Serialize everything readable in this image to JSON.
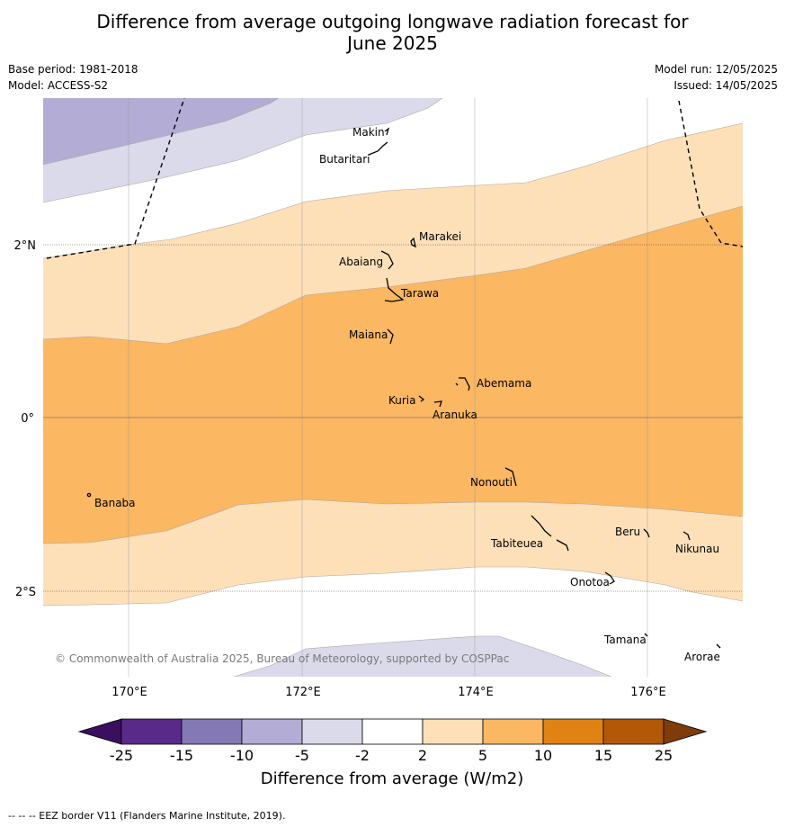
{
  "title_line1": "Difference from average outgoing longwave radiation forecast for",
  "title_line2": "June 2025",
  "base_period": "Base period: 1981-2018",
  "model": "Model: ACCESS-S2",
  "model_run": "Model run: 12/05/2025",
  "issued": "Issued: 14/05/2025",
  "copyright": "© Commonwealth of Australia 2025, Bureau of Meteorology, supported by COSPPac",
  "lat_labels": [
    "2°N",
    "0°",
    "2°S"
  ],
  "lon_labels": [
    "170°E",
    "172°E",
    "174°E",
    "176°E"
  ],
  "places": [
    "Makin",
    "Butaritari",
    "Marakei",
    "Abaiang",
    "Tarawa",
    "Maiana",
    "Abemama",
    "Kuria",
    "Aranuka",
    "Nonouti",
    "Banaba",
    "Beru",
    "Tabiteuea",
    "Nikunau",
    "Onotoa",
    "Tamana",
    "Arorae"
  ],
  "colorbar": {
    "ticks": [
      "-25",
      "-15",
      "-10",
      "-5",
      "-2",
      "2",
      "5",
      "10",
      "15",
      "25"
    ],
    "colors": [
      "#3b0f5f",
      "#5a2a8a",
      "#8478b5",
      "#b3acd4",
      "#dadaeb",
      "#ffffff",
      "#fde0b8",
      "#fbb762",
      "#e08214",
      "#b35806",
      "#7f3b08"
    ],
    "label": "Difference from average (W/m2)"
  },
  "footnote": "--  --  -- EEZ border V11 (Flanders Marine Institute, 2019)."
}
